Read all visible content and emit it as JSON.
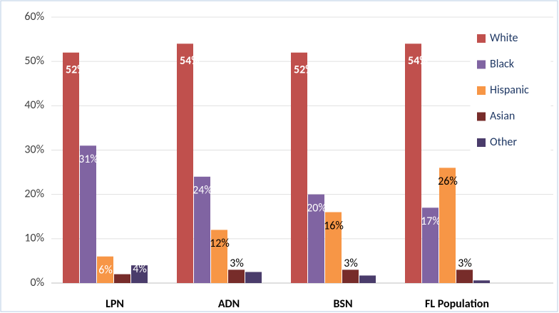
{
  "chart_data": {
    "type": "bar",
    "categories": [
      "LPN",
      "ADN",
      "BSN",
      "FL Population"
    ],
    "series": [
      {
        "name": "White",
        "color": "#c0504d",
        "values": [
          52,
          54,
          52,
          54
        ],
        "value_labels": [
          "52%",
          "54%",
          "52%",
          "54%"
        ]
      },
      {
        "name": "Black",
        "color": "#8064a2",
        "values": [
          31,
          24,
          20,
          17
        ],
        "value_labels": [
          "31%",
          "24%",
          "20%",
          "17%"
        ]
      },
      {
        "name": "Hispanic",
        "color": "#f79646",
        "values": [
          6,
          12,
          16,
          26
        ],
        "value_labels": [
          "6%",
          "12%",
          "16%",
          "26%"
        ]
      },
      {
        "name": "Asian",
        "color": "#772c2a",
        "values": [
          2,
          3,
          3,
          3
        ],
        "value_labels": [
          null,
          "3%",
          "3%",
          "3%"
        ]
      },
      {
        "name": "Other",
        "color": "#4a3c6b",
        "values": [
          4,
          2.5,
          1.7,
          0.6
        ],
        "value_labels": [
          "4%",
          null,
          null,
          null
        ]
      }
    ],
    "ylim": [
      0,
      60
    ],
    "yticks": [
      {
        "value": 0,
        "label": "0%"
      },
      {
        "value": 10,
        "label": "10%"
      },
      {
        "value": 20,
        "label": "20%"
      },
      {
        "value": 30,
        "label": "30%"
      },
      {
        "value": 40,
        "label": "40%"
      },
      {
        "value": 50,
        "label": "50%"
      },
      {
        "value": 60,
        "label": "60%"
      }
    ],
    "grid": true,
    "legend": "upper right"
  }
}
